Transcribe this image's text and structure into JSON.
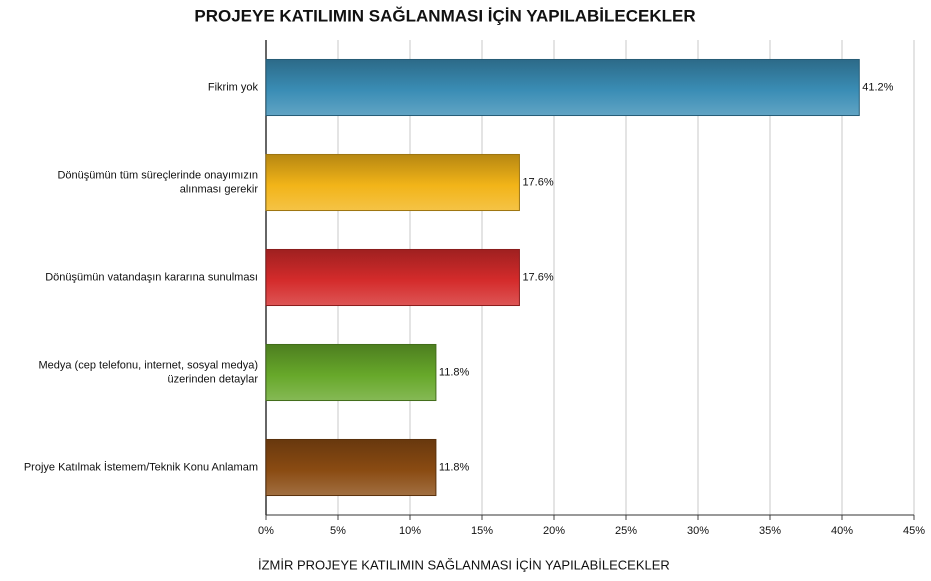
{
  "chart_data": {
    "type": "bar",
    "orientation": "horizontal",
    "title": "PROJEYE KATILIMIN SAĞLANMASI İÇİN YAPILABİLECEKLER",
    "x_label": "İZMİR PROJEYE KATILIMIN SAĞLANMASI İÇİN YAPILABİLECEKLER",
    "categories": [
      "Fikrim yok",
      "Dönüşümün tüm süreçlerinde onayımızın alınması gerekir",
      "Dönüşümün vatandaşın kararına sunulması",
      "Medya (cep telefonu, internet, sosyal medya) üzerinden detaylar",
      "Projye Katılmak İstemem/Teknik Konu Anlamam"
    ],
    "values": [
      41.2,
      17.6,
      17.6,
      11.8,
      11.8
    ],
    "value_labels": [
      "41.2%",
      "17.6%",
      "17.6%",
      "11.8%",
      "11.8%"
    ],
    "colors": [
      "#3a8db5",
      "#f2b418",
      "#d42b2b",
      "#67a82a",
      "#8a4b12"
    ],
    "xlim": [
      0,
      45
    ],
    "xticks": [
      {
        "value": 0,
        "label": "0%"
      },
      {
        "value": 5,
        "label": "5%"
      },
      {
        "value": 10,
        "label": "10%"
      },
      {
        "value": 15,
        "label": "15%"
      },
      {
        "value": 20,
        "label": "20%"
      },
      {
        "value": 25,
        "label": "25%"
      },
      {
        "value": 30,
        "label": "30%"
      },
      {
        "value": 35,
        "label": "35%"
      },
      {
        "value": 40,
        "label": "40%"
      },
      {
        "value": 45,
        "label": "45%"
      }
    ],
    "grid": true
  }
}
